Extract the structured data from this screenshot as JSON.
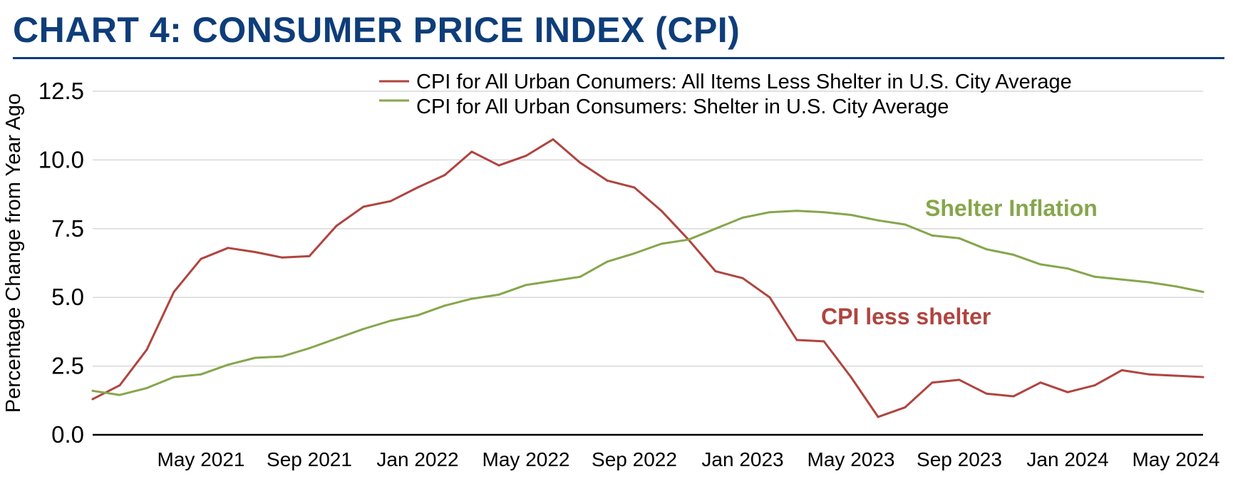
{
  "page_title": "CHART 4: CONSUMER PRICE INDEX (CPI)",
  "colors": {
    "title": "#0e3d7a",
    "cpi_less_shelter": "#b0443f",
    "shelter": "#86a64b",
    "axis": "#000000",
    "grid": "#d9d9d9"
  },
  "chart_data": {
    "type": "line",
    "title": "",
    "ylabel": "Percentage Change from Year Ago",
    "xlabel": "",
    "ylim": [
      0,
      12.5
    ],
    "yticks": [
      0,
      2.5,
      5,
      7.5,
      10,
      12.5
    ],
    "ytick_labels": [
      "0.0",
      "2.5",
      "5.0",
      "7.5",
      "10.0",
      "12.5"
    ],
    "grid": true,
    "legend_position": "top-right",
    "x": [
      "Jan 2021",
      "Feb 2021",
      "Mar 2021",
      "Apr 2021",
      "May 2021",
      "Jun 2021",
      "Jul 2021",
      "Aug 2021",
      "Sep 2021",
      "Oct 2021",
      "Nov 2021",
      "Dec 2021",
      "Jan 2022",
      "Feb 2022",
      "Mar 2022",
      "Apr 2022",
      "May 2022",
      "Jun 2022",
      "Jul 2022",
      "Aug 2022",
      "Sep 2022",
      "Oct 2022",
      "Nov 2022",
      "Dec 2022",
      "Jan 2023",
      "Feb 2023",
      "Mar 2023",
      "Apr 2023",
      "May 2023",
      "Jun 2023",
      "Jul 2023",
      "Aug 2023",
      "Sep 2023",
      "Oct 2023",
      "Nov 2023",
      "Dec 2023",
      "Jan 2024",
      "Feb 2024",
      "Mar 2024",
      "Apr 2024",
      "May 2024",
      "Jun 2024"
    ],
    "x_tick_labels": [
      {
        "index": 4,
        "label": "May 2021"
      },
      {
        "index": 8,
        "label": "Sep 2021"
      },
      {
        "index": 12,
        "label": "Jan 2022"
      },
      {
        "index": 16,
        "label": "May 2022"
      },
      {
        "index": 20,
        "label": "Sep 2022"
      },
      {
        "index": 24,
        "label": "Jan 2023"
      },
      {
        "index": 28,
        "label": "May 2023"
      },
      {
        "index": 32,
        "label": "Sep 2023"
      },
      {
        "index": 36,
        "label": "Jan 2024"
      },
      {
        "index": 40,
        "label": "May 2024"
      }
    ],
    "series": [
      {
        "name": "CPI for All Urban Conumers: All Items Less Shelter in U.S. City Average",
        "key": "cpi_less_shelter",
        "values": [
          1.3,
          1.8,
          3.1,
          5.2,
          6.4,
          6.8,
          6.65,
          6.45,
          6.5,
          7.6,
          8.3,
          8.5,
          9.0,
          9.45,
          10.3,
          9.8,
          10.15,
          10.75,
          9.9,
          9.25,
          9.0,
          8.15,
          7.1,
          5.95,
          5.7,
          5.0,
          3.45,
          3.4,
          2.1,
          0.65,
          1.0,
          1.9,
          2.0,
          1.5,
          1.4,
          1.9,
          1.55,
          1.8,
          2.35,
          2.2,
          2.15,
          2.1
        ]
      },
      {
        "name": "CPI for All Urban Consumers: Shelter in U.S. City Average",
        "key": "shelter",
        "values": [
          1.6,
          1.45,
          1.7,
          2.1,
          2.2,
          2.55,
          2.8,
          2.85,
          3.15,
          3.5,
          3.85,
          4.15,
          4.35,
          4.7,
          4.95,
          5.1,
          5.45,
          5.6,
          5.75,
          6.3,
          6.6,
          6.95,
          7.1,
          7.5,
          7.9,
          8.1,
          8.15,
          8.1,
          8.0,
          7.8,
          7.65,
          7.25,
          7.15,
          6.75,
          6.55,
          6.2,
          6.05,
          5.75,
          5.65,
          5.55,
          5.4,
          5.2
        ]
      }
    ],
    "annotations": [
      {
        "text": "Shelter Inflation",
        "series": "shelter"
      },
      {
        "text": "CPI less shelter",
        "series": "cpi_less_shelter"
      }
    ]
  }
}
